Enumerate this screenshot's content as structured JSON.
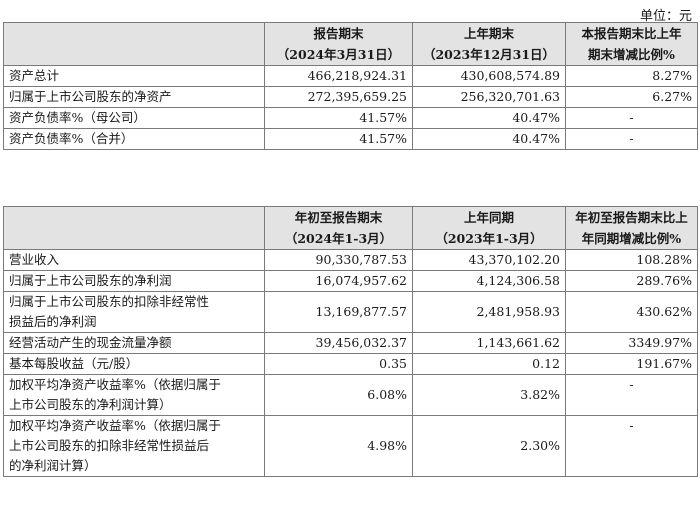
{
  "unit_label": "单位：元",
  "table1": {
    "headers": [
      {
        "line1": "",
        "line2": ""
      },
      {
        "line1": "报告期末",
        "line2": "（2024年3月31日）"
      },
      {
        "line1": "上年期末",
        "line2": "（2023年12月31日）"
      },
      {
        "line1": "本报告期末比上年",
        "line2": "期末增减比例%"
      }
    ],
    "rows": [
      {
        "label": "资产总计",
        "current": "466,218,924.31",
        "prior": "430,608,574.89",
        "change": "8.27%"
      },
      {
        "label": "归属于上市公司股东的净资产",
        "current": "272,395,659.25",
        "prior": "256,320,701.63",
        "change": "6.27%"
      },
      {
        "label": "资产负债率%（母公司）",
        "current": "41.57%",
        "prior": "40.47%",
        "change": "-"
      },
      {
        "label": "资产负债率%（合并）",
        "current": "41.57%",
        "prior": "40.47%",
        "change": "-"
      }
    ]
  },
  "table2": {
    "headers": [
      {
        "line1": "",
        "line2": ""
      },
      {
        "line1": "年初至报告期末",
        "line2": "（2024年1-3月）"
      },
      {
        "line1": "上年同期",
        "line2": "（2023年1-3月）"
      },
      {
        "line1": "年初至报告期末比上",
        "line2": "年同期增减比例%"
      }
    ],
    "rows": [
      {
        "label_lines": [
          "营业收入"
        ],
        "current": "90,330,787.53",
        "prior": "43,370,102.20",
        "change": "108.28%"
      },
      {
        "label_lines": [
          "归属于上市公司股东的净利润"
        ],
        "current": "16,074,957.62",
        "prior": "4,124,306.58",
        "change": "289.76%"
      },
      {
        "label_lines": [
          "归属于上市公司股东的扣除非经常性",
          "损益后的净利润"
        ],
        "current": "13,169,877.57",
        "prior": "2,481,958.93",
        "change": "430.62%"
      },
      {
        "label_lines": [
          "经营活动产生的现金流量净额"
        ],
        "current": "39,456,032.37",
        "prior": "1,143,661.62",
        "change": "3349.97%"
      },
      {
        "label_lines": [
          "基本每股收益（元/股）"
        ],
        "current": "0.35",
        "prior": "0.12",
        "change": "191.67%"
      },
      {
        "label_lines": [
          "加权平均净资产收益率%（依据归属于",
          "上市公司股东的净利润计算）"
        ],
        "current": "6.08%",
        "prior": "3.82%",
        "change": "-"
      },
      {
        "label_lines": [
          "加权平均净资产收益率%（依据归属于",
          "上市公司股东的扣除非经常性损益后",
          "的净利润计算）"
        ],
        "current": "4.98%",
        "prior": "2.30%",
        "change": "-"
      }
    ]
  }
}
